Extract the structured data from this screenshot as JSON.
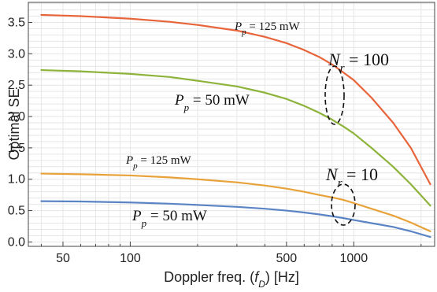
{
  "chart_data": {
    "type": "line",
    "xlabel": "Doppler freq. (",
    "xlabel_sym": "f",
    "xlabel_sub": "D",
    "xlabel_unit": ") [Hz]",
    "ylabel": "Optimal SE",
    "xscale": "log",
    "xlim": [
      35,
      2300
    ],
    "ylim": [
      -0.07,
      3.82
    ],
    "grid": true,
    "xticks": [
      50,
      100,
      500,
      1000
    ],
    "xtick_labels": [
      "50",
      "100",
      "500",
      "1000"
    ],
    "yticks": [
      0.0,
      0.5,
      1.0,
      1.5,
      2.0,
      2.5,
      3.0,
      3.5
    ],
    "ytick_labels": [
      "0.0",
      "0.5",
      "1.0",
      "1.5",
      "2.0",
      "2.5",
      "3.0",
      "3.5"
    ],
    "series": [
      {
        "color": "#e8643a",
        "x": [
          40,
          60,
          100,
          150,
          200,
          300,
          400,
          500,
          600,
          700,
          800,
          900,
          1000,
          1200,
          1500,
          1800,
          2200
        ],
        "y": [
          3.62,
          3.6,
          3.56,
          3.51,
          3.46,
          3.37,
          3.27,
          3.17,
          3.06,
          2.95,
          2.83,
          2.7,
          2.58,
          2.3,
          1.9,
          1.5,
          0.92
        ]
      },
      {
        "color": "#8db33a",
        "x": [
          40,
          60,
          100,
          150,
          200,
          300,
          400,
          500,
          600,
          700,
          800,
          900,
          1000,
          1200,
          1500,
          1800,
          2200
        ],
        "y": [
          2.74,
          2.72,
          2.68,
          2.63,
          2.57,
          2.48,
          2.38,
          2.28,
          2.17,
          2.06,
          1.95,
          1.84,
          1.73,
          1.5,
          1.2,
          0.92,
          0.58
        ]
      },
      {
        "color": "#e8a23a",
        "x": [
          40,
          60,
          100,
          150,
          200,
          300,
          400,
          500,
          600,
          700,
          800,
          900,
          1000,
          1200,
          1500,
          1800,
          2200
        ],
        "y": [
          1.09,
          1.08,
          1.06,
          1.03,
          1.0,
          0.95,
          0.9,
          0.85,
          0.8,
          0.75,
          0.71,
          0.67,
          0.62,
          0.53,
          0.42,
          0.31,
          0.17
        ]
      },
      {
        "color": "#5b84c4",
        "x": [
          40,
          60,
          100,
          150,
          200,
          300,
          400,
          500,
          600,
          700,
          800,
          900,
          1000,
          1200,
          1500,
          1800,
          2200
        ],
        "y": [
          0.65,
          0.645,
          0.63,
          0.61,
          0.59,
          0.56,
          0.53,
          0.5,
          0.47,
          0.44,
          0.41,
          0.38,
          0.35,
          0.3,
          0.24,
          0.17,
          0.08
        ]
      }
    ],
    "annotations": [
      {
        "text_sym": "P",
        "text_sub": "p",
        "text_rest": " = 125 mW",
        "size": "small"
      },
      {
        "text_sym": "P",
        "text_sub": "p",
        "text_rest": " = 50 mW",
        "size": "mid"
      },
      {
        "text_sym": "P",
        "text_sub": "p",
        "text_rest": " = 125 mW",
        "size": "small"
      },
      {
        "text_sym": "P",
        "text_sub": "p",
        "text_rest": " = 50 mW",
        "size": "mid"
      },
      {
        "text_sym": "N",
        "text_sub": "r",
        "text_rest": " = 100",
        "size": "big"
      },
      {
        "text_sym": "N",
        "text_sub": "r",
        "text_rest": " = 10",
        "size": "big"
      }
    ]
  }
}
